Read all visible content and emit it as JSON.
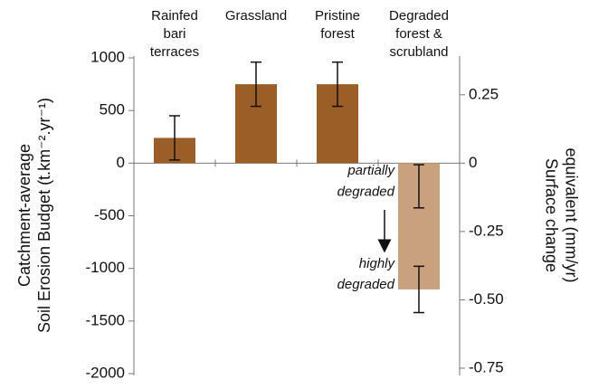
{
  "chart_data": {
    "type": "bar",
    "categories": [
      [
        "Rainfed",
        "bari",
        "terraces"
      ],
      [
        "Grassland"
      ],
      [
        "Pristine",
        "forest"
      ],
      [
        "Degraded",
        "forest &",
        "scrubland"
      ]
    ],
    "series": [
      {
        "color": "#9b5e27",
        "values": [
          240,
          750,
          750,
          -220
        ],
        "errors": [
          210,
          210,
          210,
          205
        ]
      },
      {
        "color": "#c9a17f",
        "values": [
          null,
          null,
          null,
          -1200
        ],
        "errors": [
          null,
          null,
          null,
          220
        ]
      }
    ],
    "annotations": [
      [
        "partially",
        "degraded"
      ],
      [
        "highly",
        "degraded"
      ]
    ],
    "ylabel": [
      "Catchment-average",
      "Soil Erosion Budget (t.km⁻².yr⁻¹)"
    ],
    "y2label": [
      "Surface change",
      "equivalent (mm/yr)"
    ],
    "ylim": [
      -2000,
      1000
    ],
    "yticks": [
      1000,
      500,
      0,
      -500,
      -1000,
      -1500,
      -2000
    ],
    "y2lim": [
      -0.77,
      0.385
    ],
    "y2ticks": [
      0.25,
      0,
      -0.25,
      {
        "value": -0.5,
        "label": "-0.50"
      },
      -0.75
    ]
  }
}
